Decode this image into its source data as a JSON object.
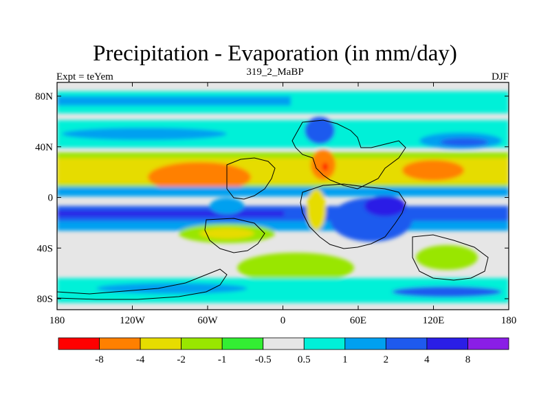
{
  "title": "Precipitation - Evaporation (in mm/day)",
  "subtitle": "319_2_MaBP",
  "left_label": "Expt = teYem",
  "right_label": "DJF",
  "map": {
    "lat_ticks": [
      "80N",
      "40N",
      "0",
      "40S",
      "80S"
    ],
    "lon_ticks": [
      "180",
      "120W",
      "60W",
      "0",
      "60E",
      "120E",
      "180"
    ]
  },
  "colorbar": {
    "colors": [
      "#ff0000",
      "#ff8000",
      "#e6dc00",
      "#99e600",
      "#33ee33",
      "#e6e6e6",
      "#00f0d8",
      "#00a0f0",
      "#1e5aee",
      "#2a1ee6",
      "#8a1ee6"
    ],
    "labels": [
      "-8",
      "-4",
      "-2",
      "-1",
      "-0.5",
      "0.5",
      "1",
      "2",
      "4",
      "8"
    ]
  }
}
